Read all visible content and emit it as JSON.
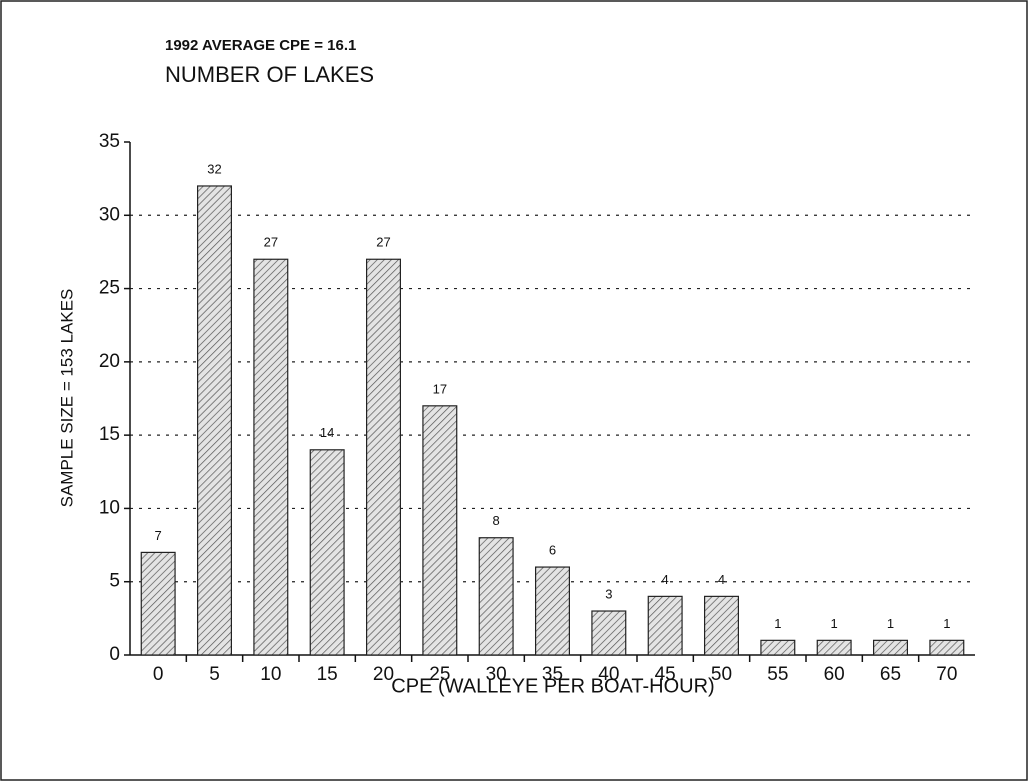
{
  "chart_data": {
    "type": "bar",
    "title": "1992 AVERAGE CPE = 16.1",
    "subtitle": "NUMBER OF LAKES",
    "x_label": "CPE (WALLEYE PER BOAT-HOUR)",
    "y_label": "SAMPLE SIZE = 153 LAKES",
    "categories": [
      "0",
      "5",
      "10",
      "15",
      "20",
      "25",
      "30",
      "35",
      "40",
      "45",
      "50",
      "55",
      "60",
      "65",
      "70"
    ],
    "values": [
      7,
      32,
      27,
      14,
      27,
      17,
      8,
      6,
      3,
      4,
      4,
      1,
      1,
      1,
      1
    ],
    "color": "#d8d8d8",
    "ylim": [
      0,
      35
    ],
    "yticks": [
      0,
      5,
      10,
      15,
      20,
      25,
      30,
      35
    ],
    "grid": true
  }
}
